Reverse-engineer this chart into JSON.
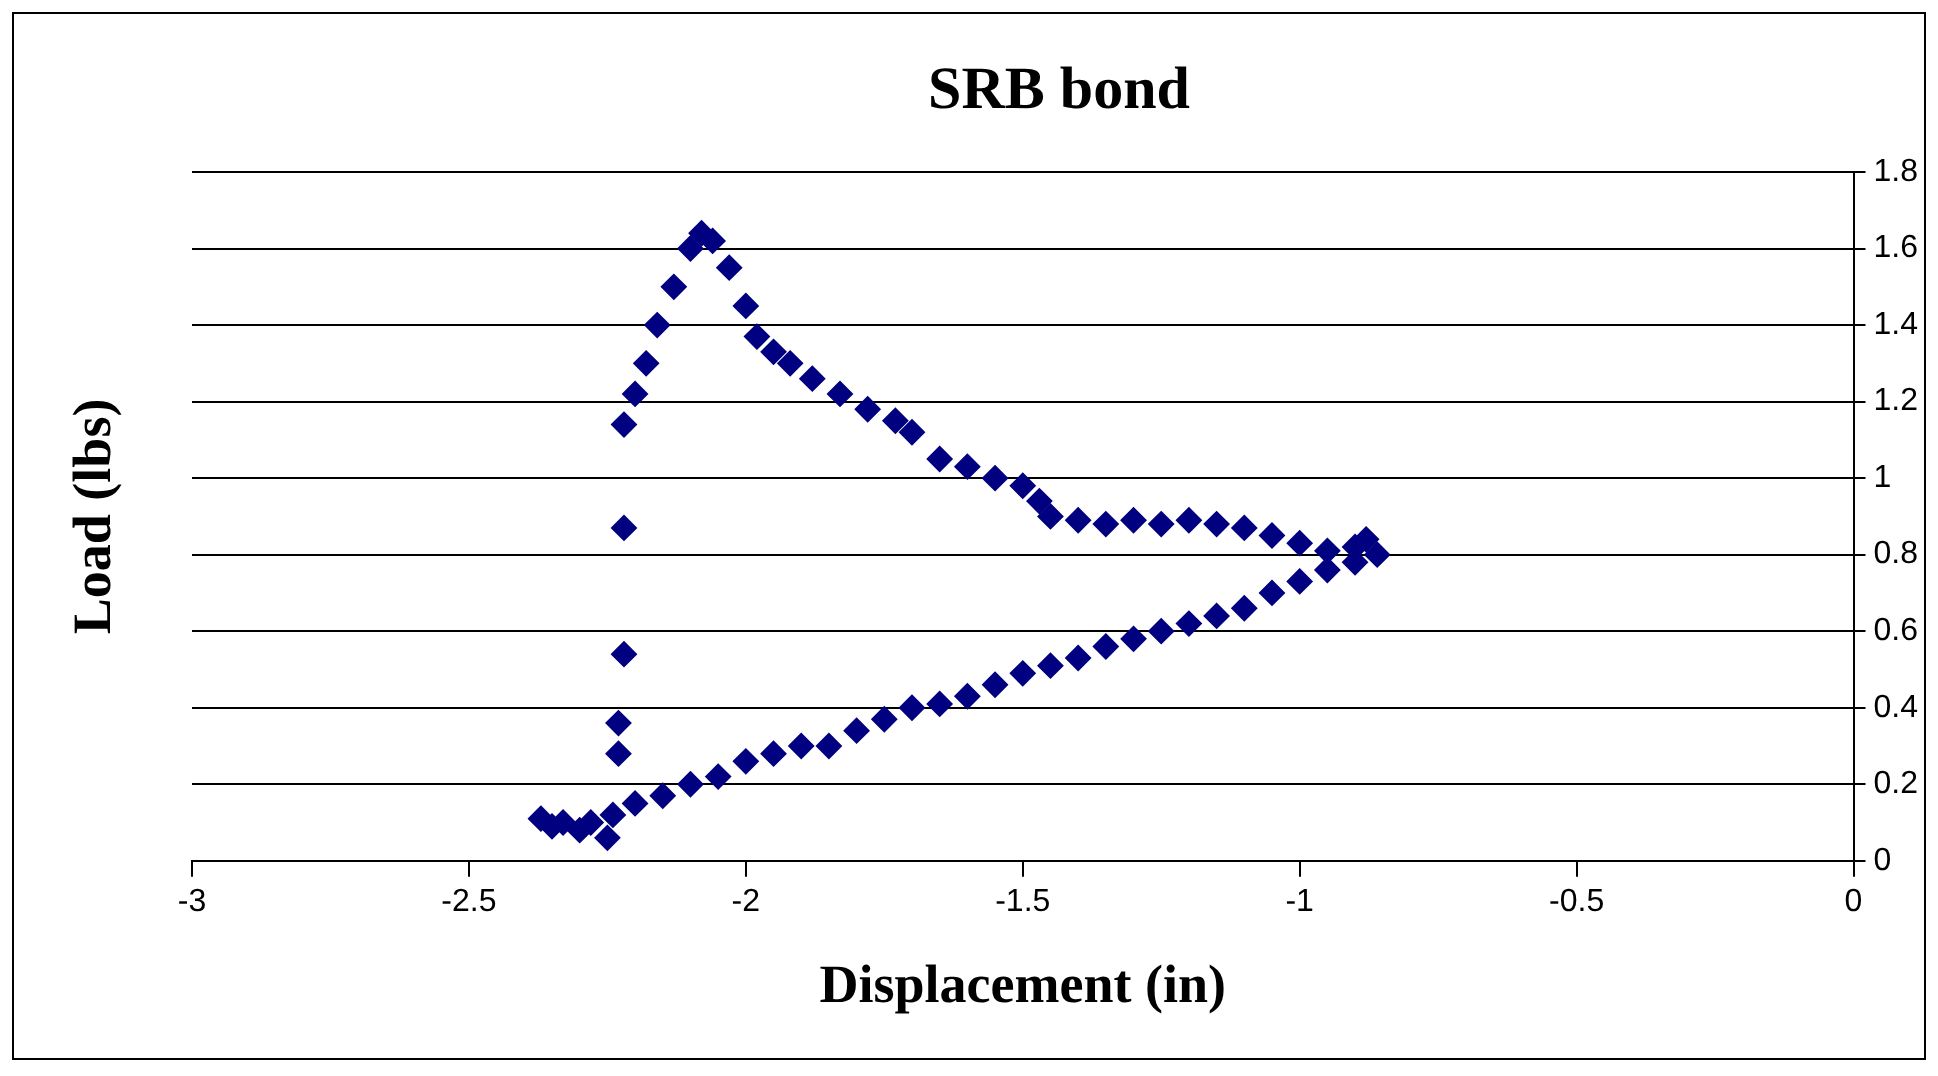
{
  "chart_data": {
    "type": "scatter",
    "title": "SRB bond",
    "xlabel": "Displacement (in)",
    "ylabel": "Load (lbs)",
    "xlim": [
      -3,
      0
    ],
    "xticks": [
      -3,
      -2.5,
      -2,
      -1.5,
      -1,
      -0.5,
      0
    ],
    "ylim": [
      0,
      1.8
    ],
    "yticks": [
      0,
      0.2,
      0.4,
      0.6,
      0.8,
      1,
      1.2,
      1.4,
      1.6,
      1.8
    ],
    "grid": "y",
    "legend": false,
    "marker": "diamond",
    "series": [
      {
        "color": "#000080",
        "x": [
          -2.37,
          -2.35,
          -2.33,
          -2.3,
          -2.28,
          -2.25,
          -2.24,
          -2.2,
          -2.15,
          -2.1,
          -2.05,
          -2.0,
          -1.95,
          -1.9,
          -1.85,
          -1.8,
          -1.75,
          -1.7,
          -1.65,
          -1.6,
          -1.55,
          -1.5,
          -1.45,
          -1.4,
          -1.35,
          -1.3,
          -1.25,
          -1.2,
          -1.15,
          -1.1,
          -1.05,
          -1.0,
          -0.95,
          -0.9,
          -0.86,
          -0.88,
          -0.9,
          -0.95,
          -1.0,
          -1.05,
          -1.1,
          -1.15,
          -1.2,
          -1.25,
          -1.3,
          -1.35,
          -1.4,
          -1.45,
          -1.47,
          -1.5,
          -1.55,
          -1.6,
          -1.65,
          -1.7,
          -1.73,
          -1.78,
          -1.83,
          -1.88,
          -1.92,
          -1.95,
          -1.98,
          -2.0,
          -2.03,
          -2.06,
          -2.08,
          -2.1,
          -2.13,
          -2.16,
          -2.18,
          -2.2,
          -2.22,
          -2.22,
          -2.22,
          -2.23,
          -2.23
        ],
        "values": [
          0.11,
          0.09,
          0.1,
          0.08,
          0.1,
          0.06,
          0.12,
          0.15,
          0.17,
          0.2,
          0.22,
          0.26,
          0.28,
          0.3,
          0.3,
          0.34,
          0.37,
          0.4,
          0.41,
          0.43,
          0.46,
          0.49,
          0.51,
          0.53,
          0.56,
          0.58,
          0.6,
          0.62,
          0.64,
          0.66,
          0.7,
          0.73,
          0.76,
          0.78,
          0.8,
          0.84,
          0.82,
          0.81,
          0.83,
          0.85,
          0.87,
          0.88,
          0.89,
          0.88,
          0.89,
          0.88,
          0.89,
          0.9,
          0.94,
          0.98,
          1.0,
          1.03,
          1.05,
          1.12,
          1.15,
          1.18,
          1.22,
          1.26,
          1.3,
          1.33,
          1.37,
          1.45,
          1.55,
          1.62,
          1.64,
          1.6,
          1.5,
          1.4,
          1.3,
          1.22,
          1.14,
          0.87,
          0.54,
          0.36,
          0.28
        ]
      }
    ]
  }
}
